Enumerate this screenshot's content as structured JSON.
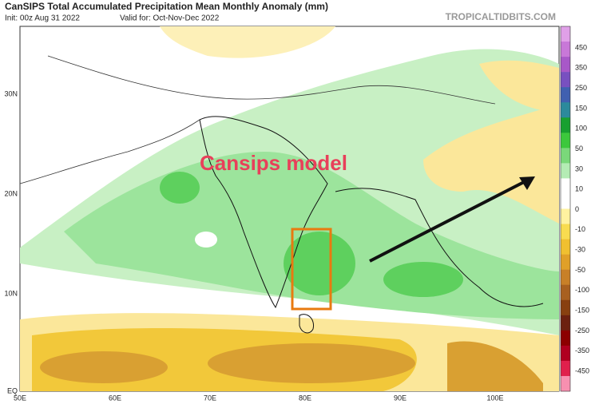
{
  "header": {
    "title": "CanSIPS Total Accumulated Precipitation Mean Monthly Anomaly (mm)",
    "init": "Init: 00z Aug 31 2022",
    "valid": "Valid for: Oct-Nov-Dec 2022",
    "watermark": "TROPICALTIDBITS.COM"
  },
  "map": {
    "lat_labels": [
      "30N",
      "20N",
      "10N",
      "EQ"
    ],
    "lon_labels": [
      "50E",
      "60E",
      "70E",
      "80E",
      "90E",
      "100E"
    ],
    "annotation": "Cansips model"
  },
  "colorbar": {
    "labels": [
      "450",
      "350",
      "250",
      "150",
      "100",
      "50",
      "30",
      "10",
      "0",
      "-10",
      "-30",
      "-50",
      "-100",
      "-150",
      "-250",
      "-350",
      "-450"
    ],
    "colors": [
      "#e0a0e8",
      "#c878d8",
      "#a858c8",
      "#7850c0",
      "#4060b0",
      "#2c8a9c",
      "#18a030",
      "#3cc83c",
      "#7ad87a",
      "#b4ecb4",
      "#ffffff",
      "#ffffff",
      "#fff2a0",
      "#f8dc50",
      "#f0c030",
      "#e0a028",
      "#c88028",
      "#a86020",
      "#884010",
      "#6c2010",
      "#8c0000",
      "#b00020",
      "#e0204c",
      "#f890b0"
    ]
  }
}
